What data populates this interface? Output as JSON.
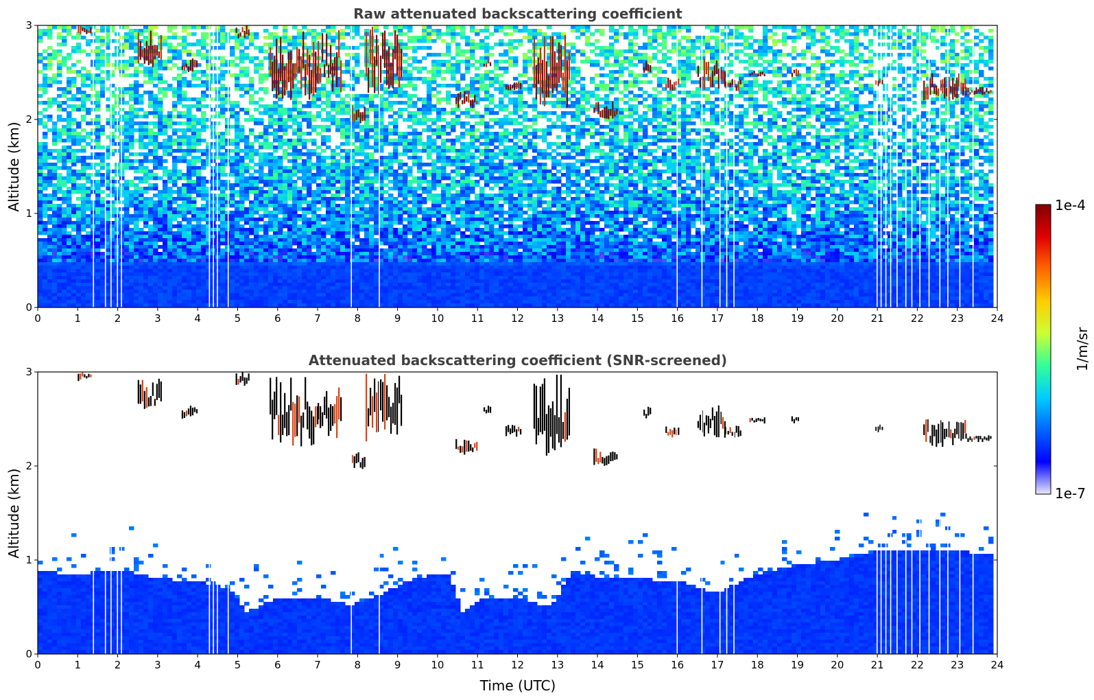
{
  "chart_data": [
    {
      "type": "heatmap",
      "title": "Raw attenuated backscattering coefficient",
      "xlabel": "",
      "ylabel": "Altitude (km)",
      "xlim": [
        0,
        24
      ],
      "ylim": [
        0,
        3
      ],
      "xticks": [
        "0",
        "1",
        "2",
        "3",
        "4",
        "5",
        "6",
        "7",
        "8",
        "9",
        "10",
        "11",
        "12",
        "13",
        "14",
        "15",
        "16",
        "17",
        "18",
        "19",
        "20",
        "21",
        "22",
        "23",
        "24"
      ],
      "yticks": [
        "0",
        "1",
        "2",
        "3"
      ],
      "screened": false,
      "missing_profiles_utc": [
        1.38,
        1.68,
        1.82,
        1.98,
        2.08,
        4.28,
        4.38,
        4.48,
        4.75,
        7.83,
        8.53,
        15.98,
        16.6,
        17.05,
        17.22,
        17.4,
        20.98,
        21.08,
        21.2,
        21.32,
        21.48,
        21.7,
        21.85,
        22.05,
        22.28,
        22.55,
        22.75,
        23.05,
        23.38
      ],
      "cloud_patches": [
        {
          "x": [
            1.0,
            1.35
          ],
          "y": [
            2.9,
            3.0
          ]
        },
        {
          "x": [
            2.5,
            3.1
          ],
          "y": [
            2.55,
            2.95
          ]
        },
        {
          "x": [
            3.6,
            4.0
          ],
          "y": [
            2.5,
            2.65
          ]
        },
        {
          "x": [
            4.95,
            5.3
          ],
          "y": [
            2.85,
            3.0
          ]
        },
        {
          "x": [
            5.8,
            7.0
          ],
          "y": [
            2.2,
            2.95
          ]
        },
        {
          "x": [
            7.0,
            7.6
          ],
          "y": [
            2.25,
            2.95
          ]
        },
        {
          "x": [
            7.85,
            8.2
          ],
          "y": [
            1.95,
            2.15
          ]
        },
        {
          "x": [
            8.2,
            9.1
          ],
          "y": [
            2.25,
            3.0
          ]
        },
        {
          "x": [
            10.45,
            11.0
          ],
          "y": [
            2.12,
            2.3
          ]
        },
        {
          "x": [
            11.15,
            11.35
          ],
          "y": [
            2.55,
            2.65
          ]
        },
        {
          "x": [
            11.7,
            12.1
          ],
          "y": [
            2.3,
            2.45
          ]
        },
        {
          "x": [
            12.4,
            13.3
          ],
          "y": [
            2.1,
            3.0
          ]
        },
        {
          "x": [
            13.9,
            14.5
          ],
          "y": [
            2.0,
            2.2
          ]
        },
        {
          "x": [
            15.15,
            15.35
          ],
          "y": [
            2.45,
            2.65
          ]
        },
        {
          "x": [
            15.7,
            16.05
          ],
          "y": [
            2.3,
            2.45
          ]
        },
        {
          "x": [
            16.5,
            17.2
          ],
          "y": [
            2.3,
            2.65
          ]
        },
        {
          "x": [
            17.2,
            17.6
          ],
          "y": [
            2.3,
            2.45
          ]
        },
        {
          "x": [
            17.8,
            18.2
          ],
          "y": [
            2.45,
            2.52
          ]
        },
        {
          "x": [
            18.85,
            19.05
          ],
          "y": [
            2.45,
            2.55
          ]
        },
        {
          "x": [
            20.95,
            21.15
          ],
          "y": [
            2.35,
            2.45
          ]
        },
        {
          "x": [
            22.15,
            23.2
          ],
          "y": [
            2.2,
            2.5
          ]
        },
        {
          "x": [
            23.2,
            23.85
          ],
          "y": [
            2.25,
            2.35
          ]
        }
      ]
    },
    {
      "type": "heatmap",
      "title": "Attenuated backscattering coefficient (SNR-screened)",
      "xlabel": "Time (UTC)",
      "ylabel": "Altitude (km)",
      "xlim": [
        0,
        24
      ],
      "ylim": [
        0,
        3
      ],
      "xticks": [
        "0",
        "1",
        "2",
        "3",
        "4",
        "5",
        "6",
        "7",
        "8",
        "9",
        "10",
        "11",
        "12",
        "13",
        "14",
        "15",
        "16",
        "17",
        "18",
        "19",
        "20",
        "21",
        "22",
        "23",
        "24"
      ],
      "yticks": [
        "0",
        "1",
        "2",
        "3"
      ],
      "screened": true,
      "boundary_layer_top_km": [
        {
          "t": 0,
          "h": 0.88
        },
        {
          "t": 1,
          "h": 0.85
        },
        {
          "t": 2,
          "h": 0.9
        },
        {
          "t": 3,
          "h": 0.8
        },
        {
          "t": 4,
          "h": 0.78
        },
        {
          "t": 4.8,
          "h": 0.7
        },
        {
          "t": 5.2,
          "h": 0.45
        },
        {
          "t": 6,
          "h": 0.6
        },
        {
          "t": 7,
          "h": 0.6
        },
        {
          "t": 7.8,
          "h": 0.52
        },
        {
          "t": 8.5,
          "h": 0.62
        },
        {
          "t": 9.5,
          "h": 0.82
        },
        {
          "t": 10.3,
          "h": 0.85
        },
        {
          "t": 10.6,
          "h": 0.45
        },
        {
          "t": 11.2,
          "h": 0.6
        },
        {
          "t": 12,
          "h": 0.6
        },
        {
          "t": 12.8,
          "h": 0.5
        },
        {
          "t": 13.4,
          "h": 0.88
        },
        {
          "t": 14,
          "h": 0.82
        },
        {
          "t": 15,
          "h": 0.8
        },
        {
          "t": 16,
          "h": 0.78
        },
        {
          "t": 17,
          "h": 0.65
        },
        {
          "t": 18,
          "h": 0.85
        },
        {
          "t": 19,
          "h": 0.95
        },
        {
          "t": 20,
          "h": 1.0
        },
        {
          "t": 21,
          "h": 1.1
        },
        {
          "t": 22,
          "h": 1.12
        },
        {
          "t": 23,
          "h": 1.1
        },
        {
          "t": 23.8,
          "h": 1.05
        }
      ]
    }
  ],
  "colorbar": {
    "label": "1/m/sr",
    "max_label": "1e-4",
    "min_label": "1e-7",
    "colormap": "jet",
    "colors": [
      "#e8e8f8",
      "#0000ff",
      "#0066ff",
      "#00ccff",
      "#33ff99",
      "#ccff33",
      "#ffcc00",
      "#ff6600",
      "#e00000",
      "#800000"
    ]
  }
}
